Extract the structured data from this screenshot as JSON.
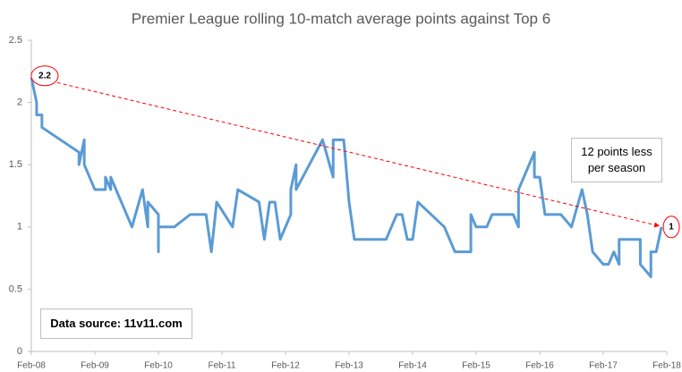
{
  "chart_data": {
    "type": "line",
    "title": "Premier League rolling 10-match average points against Top 6",
    "x": [
      "2008-02",
      "2008-03",
      "2008-03",
      "2008-04",
      "2008-04",
      "2008-11",
      "2008-11",
      "2008-12",
      "2008-12",
      "2009-02",
      "2009-04",
      "2009-04",
      "2009-05",
      "2009-05",
      "2009-09",
      "2009-11",
      "2009-12",
      "2009-12",
      "2010-02",
      "2010-02",
      "2010-02",
      "2010-05",
      "2010-08",
      "2010-11",
      "2010-12",
      "2011-01",
      "2011-04",
      "2011-05",
      "2011-09",
      "2011-10",
      "2011-11",
      "2011-12",
      "2012-01",
      "2012-03",
      "2012-03",
      "2012-04",
      "2012-04",
      "2012-09",
      "2012-11",
      "2012-11",
      "2013-01",
      "2013-02",
      "2013-03",
      "2013-09",
      "2013-11",
      "2013-12",
      "2014-01",
      "2014-02",
      "2014-03",
      "2014-08",
      "2014-10",
      "2015-01",
      "2015-01",
      "2015-02",
      "2015-04",
      "2015-05",
      "2015-09",
      "2015-10",
      "2015-10",
      "2015-11",
      "2016-01",
      "2016-01",
      "2016-02",
      "2016-03",
      "2016-06",
      "2016-08",
      "2016-10",
      "2016-11",
      "2016-11",
      "2016-12",
      "2017-02",
      "2017-03",
      "2017-04",
      "2017-05",
      "2017-05",
      "2017-09",
      "2017-09",
      "2017-11",
      "2017-11",
      "2017-12",
      "2018-01"
    ],
    "series": [
      {
        "color": "#5b9bd5",
        "values": [
          2.2,
          2.0,
          1.9,
          1.9,
          1.8,
          1.6,
          1.5,
          1.7,
          1.5,
          1.3,
          1.3,
          1.4,
          1.3,
          1.4,
          1.0,
          1.3,
          1.0,
          1.2,
          1.1,
          0.8,
          1.0,
          1.0,
          1.1,
          1.1,
          0.8,
          1.2,
          1.0,
          1.3,
          1.2,
          0.9,
          1.2,
          1.2,
          0.9,
          1.1,
          1.3,
          1.5,
          1.3,
          1.7,
          1.4,
          1.7,
          1.7,
          1.2,
          0.9,
          0.9,
          1.1,
          1.1,
          0.9,
          0.9,
          1.2,
          1.0,
          0.8,
          0.8,
          1.1,
          1.0,
          1.0,
          1.1,
          1.1,
          1.0,
          1.3,
          1.4,
          1.6,
          1.4,
          1.4,
          1.1,
          1.1,
          1.0,
          1.3,
          1.1,
          1.1,
          0.8,
          0.7,
          0.7,
          0.8,
          0.7,
          0.9,
          0.9,
          0.7,
          0.6,
          0.8,
          0.8,
          1.0
        ]
      }
    ],
    "trendline": {
      "color": "#ff0000",
      "x": [
        "2008-02",
        "2018-01"
      ],
      "values": [
        2.2,
        1
      ]
    },
    "annotations": [
      "12 points less per season",
      "Data source: 11v11.com"
    ],
    "xlim": [
      "2008-02",
      "2018-02"
    ],
    "xticks": [
      {
        "value": "2008-02",
        "label": "Feb-08"
      },
      {
        "value": "2009-02",
        "label": "Feb-09"
      },
      {
        "value": "2010-02",
        "label": "Feb-10"
      },
      {
        "value": "2011-02",
        "label": "Feb-11"
      },
      {
        "value": "2012-02",
        "label": "Feb-12"
      },
      {
        "value": "2013-02",
        "label": "Feb-13"
      },
      {
        "value": "2014-02",
        "label": "Feb-14"
      },
      {
        "value": "2015-02",
        "label": "Feb-15"
      },
      {
        "value": "2016-02",
        "label": "Feb-16"
      },
      {
        "value": "2017-02",
        "label": "Feb-17"
      },
      {
        "value": "2018-02",
        "label": "Feb-18"
      }
    ],
    "ylim": [
      0,
      2.5
    ],
    "yticks": [
      0,
      0.5,
      1,
      1.5,
      2,
      2.5
    ],
    "grid": false
  }
}
